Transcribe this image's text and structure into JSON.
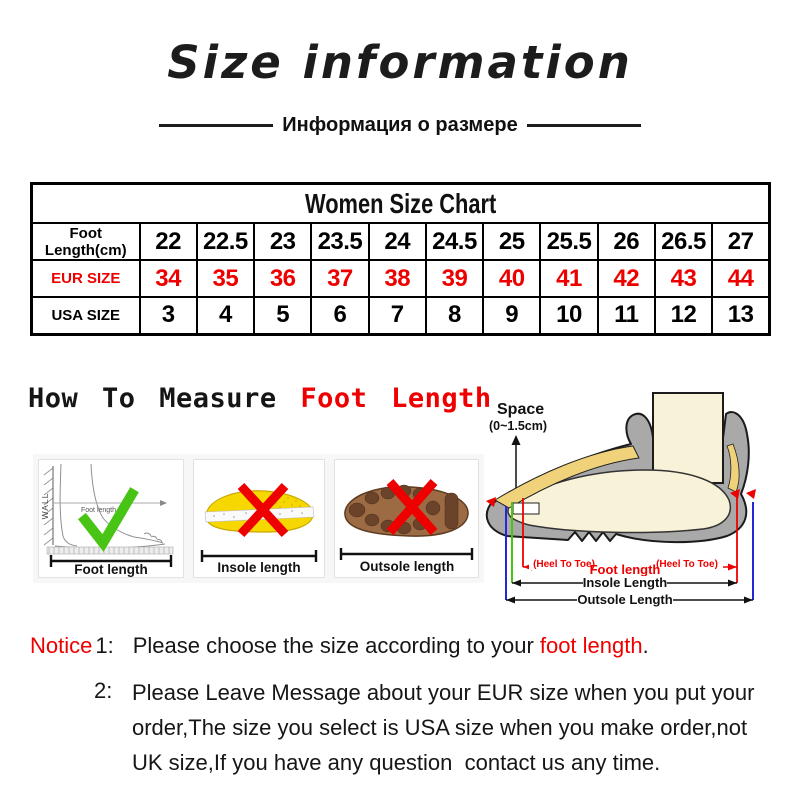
{
  "colors": {
    "red": "#ee0000",
    "green": "#47c414",
    "blue": "#2525d9",
    "insole_yellow": "#f6d800",
    "outsole_brown": "#9c6b43",
    "boot_gray": "#a9a9a9",
    "foot_cream": "#f7f2d8"
  },
  "header": {
    "title": "Size information",
    "subtitle": "Информация о размере"
  },
  "size_chart": {
    "title": "Women Size Chart",
    "rows": [
      {
        "label": "Foot Length(cm)",
        "color": "#000000",
        "values": [
          "22",
          "22.5",
          "23",
          "23.5",
          "24",
          "24.5",
          "25",
          "25.5",
          "26",
          "26.5",
          "27"
        ]
      },
      {
        "label": "EUR SIZE",
        "color": "#ee0000",
        "values": [
          "34",
          "35",
          "36",
          "37",
          "38",
          "39",
          "40",
          "41",
          "42",
          "43",
          "44"
        ]
      },
      {
        "label": "USA SIZE",
        "color": "#000000",
        "values": [
          "3",
          "4",
          "5",
          "6",
          "7",
          "8",
          "9",
          "10",
          "11",
          "12",
          "13"
        ]
      }
    ]
  },
  "measure_section": {
    "heading_black": "How To Measure ",
    "heading_red": "Foot Length",
    "wall_label": "WALL",
    "foot_inner_label": "Foot length",
    "items": [
      {
        "label": "Foot length",
        "mark": "check"
      },
      {
        "label": "Insole length",
        "mark": "cross"
      },
      {
        "label": "Outsole length",
        "mark": "cross"
      }
    ],
    "diagram": {
      "space_label": "Space",
      "space_range": "(0~1.5cm)",
      "heel_to_toe_left": "(Heel To Toe)",
      "heel_to_toe_right": "(Heel To Toe)",
      "foot_length_label": "Foot length",
      "insole_label": "Insole Length",
      "outsole_label": "Outsole Length"
    }
  },
  "notice": {
    "label": "Notice",
    "item1_num": "1:",
    "item1_pre": "Please choose the size according to your",
    "item1_red": "foot length",
    "item1_post": ".",
    "item2_num": "2:",
    "item2_lines": [
      "Please Leave Message about your EUR size when you put your",
      "order,The size you select is USA size when you make order,not",
      "UK size,If you have any question  contact us any time."
    ]
  }
}
